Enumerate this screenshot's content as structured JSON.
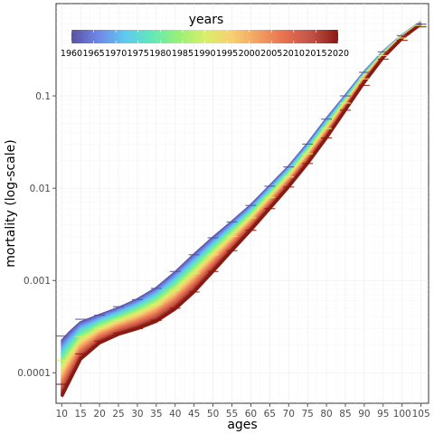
{
  "chart_data": {
    "type": "line",
    "xlabel": "ages",
    "ylabel": "mortality (log-scale)",
    "x_scale": "linear",
    "y_scale": "log",
    "xlim": [
      8.5,
      107
    ],
    "ylim": [
      4.67e-05,
      1.0
    ],
    "x_ticks": [
      10,
      15,
      20,
      25,
      30,
      35,
      40,
      45,
      50,
      55,
      60,
      65,
      70,
      75,
      80,
      85,
      90,
      95,
      100,
      105
    ],
    "y_ticks": [
      0.0001,
      0.001,
      0.01,
      0.1
    ],
    "y_tick_labels": [
      "0.0001",
      "0.001",
      "0.01",
      "0.1"
    ],
    "grid": true,
    "legend": {
      "title": "years",
      "placement": "top-left",
      "type": "colorbar",
      "range": [
        1960,
        2020
      ],
      "tick_labels": [
        "1960",
        "1965",
        "1970",
        "1975",
        "1980",
        "1985",
        "1990",
        "1995",
        "2000",
        "2005",
        "2010",
        "2015",
        "2020"
      ],
      "colors": [
        "#5a52a0",
        "#6f86e8",
        "#5fc8ef",
        "#62e8b9",
        "#95f07a",
        "#d8ef6a",
        "#f7d072",
        "#f2a063",
        "#e8704f",
        "#c0524a",
        "#8a1a10"
      ]
    },
    "series_range": {
      "years": [
        1960,
        2020
      ],
      "ages": [
        10,
        12,
        15,
        20,
        25,
        30,
        35,
        40,
        45,
        50,
        55,
        60,
        65,
        70,
        75,
        80,
        85,
        90,
        95,
        100,
        105
      ],
      "mortality_1960": [
        0.00022,
        0.00027,
        0.00035,
        0.00042,
        0.0005,
        0.00062,
        0.00082,
        0.00122,
        0.0019,
        0.0029,
        0.0043,
        0.0065,
        0.0105,
        0.017,
        0.03,
        0.056,
        0.1,
        0.18,
        0.3,
        0.45,
        0.63
      ],
      "mortality_2020": [
        5.5e-05,
        8e-05,
        0.00014,
        0.00021,
        0.00026,
        0.0003,
        0.00036,
        0.00049,
        0.00075,
        0.00125,
        0.0021,
        0.0035,
        0.006,
        0.0103,
        0.0185,
        0.035,
        0.07,
        0.14,
        0.26,
        0.42,
        0.6
      ]
    },
    "observed_marks": {
      "x": [
        10,
        15,
        20,
        25,
        30,
        35,
        40,
        45,
        50,
        55,
        60,
        65,
        70,
        75,
        80,
        85,
        90,
        95,
        100,
        105
      ],
      "mortality_1960": [
        0.00025,
        0.00038,
        0.00042,
        0.00052,
        0.00062,
        0.00082,
        0.00125,
        0.0019,
        0.0029,
        0.0043,
        0.0065,
        0.0105,
        0.017,
        0.03,
        0.056,
        0.1,
        0.18,
        0.3,
        0.45,
        0.6
      ],
      "mortality_2020": [
        7.5e-05,
        0.00016,
        0.00022,
        0.00027,
        0.0003,
        0.00037,
        0.0005,
        0.00075,
        0.00125,
        0.0021,
        0.0035,
        0.006,
        0.0103,
        0.0185,
        0.035,
        0.07,
        0.13,
        0.25,
        0.4,
        0.56
      ]
    }
  }
}
